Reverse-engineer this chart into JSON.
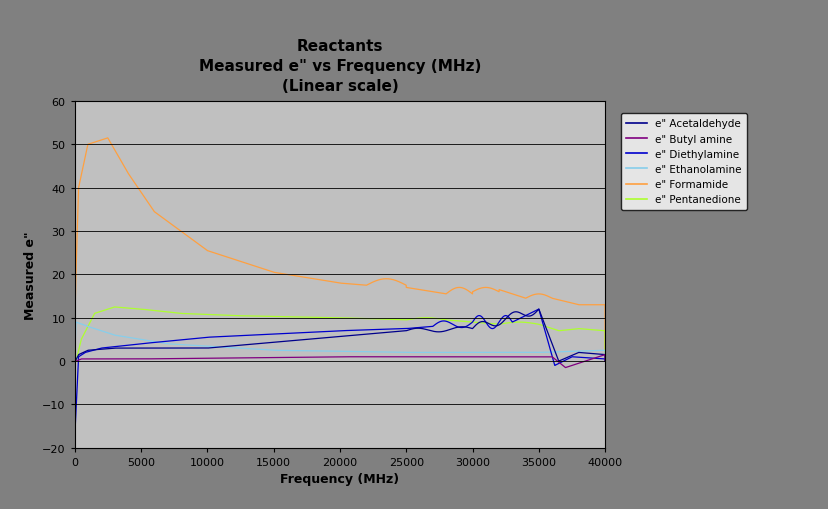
{
  "title": "Reactants",
  "subtitle1": "Measured e\" vs Frequency (MHz)",
  "subtitle2": "(Linear scale)",
  "xlabel": "Frequency (MHz)",
  "ylabel": "Measured e\"",
  "xlim": [
    0,
    40000
  ],
  "ylim": [
    -20,
    60
  ],
  "yticks": [
    -20,
    -10,
    0,
    10,
    20,
    30,
    40,
    50,
    60
  ],
  "xticks": [
    0,
    5000,
    10000,
    15000,
    20000,
    25000,
    30000,
    35000,
    40000
  ],
  "background_color": "#808080",
  "plot_bg_color": "#c0c0c0",
  "legend_labels": [
    "e\" Acetaldehyde",
    "e\" Butyl amine",
    "e\" Diethylamine",
    "e\" Ethanolamine",
    "e\" Formamide",
    "e\" Pentanedione"
  ],
  "line_colors": {
    "acetaldehyde": "#00008B",
    "butyl_amine": "#800080",
    "diethylamine": "#0000CD",
    "ethanolamine": "#87CEEB",
    "formamide": "#FFA040",
    "pentanedione": "#ADFF2F"
  }
}
